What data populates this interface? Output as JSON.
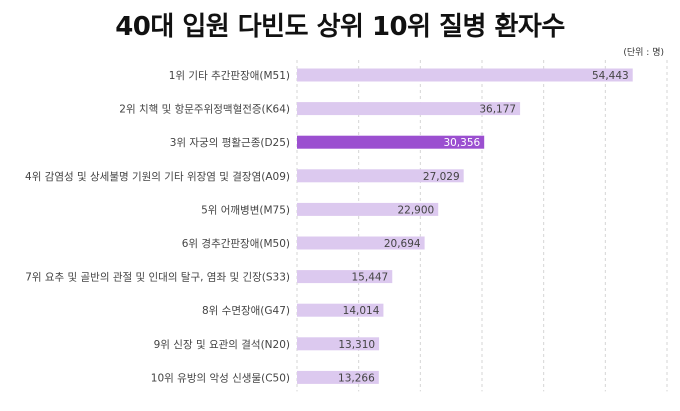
{
  "chart_data": {
    "type": "bar",
    "orientation": "horizontal",
    "title": "40대 입원 다빈도 상위 10위 질병 환자수",
    "unit_label": "(단위 : 명)",
    "categories": [
      "1위 기타 추간판장애(M51)",
      "2위 치핵 및 항문주위정맥혈전증(K64)",
      "3위 자궁의 평활근종(D25)",
      "4위 감염성 및 상세불명 기원의 기타 위장염 및 결장염(A09)",
      "5위 어깨병변(M75)",
      "6위 경추간판장애(M50)",
      "7위 요추 및 골반의 관절 및 인대의 탈구, 염좌 및 긴장(S33)",
      "8위 수면장애(G47)",
      "9위 신장 및 요관의 결석(N20)",
      "10위 유방의 악성 신생물(C50)"
    ],
    "values": [
      54443,
      36177,
      30356,
      27029,
      22900,
      20694,
      15447,
      14014,
      13310,
      13266
    ],
    "value_labels": [
      "54,443",
      "36,177",
      "30,356",
      "27,029",
      "22,900",
      "20,694",
      "15,447",
      "14,014",
      "13,310",
      "13,266"
    ],
    "highlight_index": 2,
    "xlim": [
      0,
      60000
    ],
    "grid": "vertical dashed",
    "colors": {
      "bar": "#dcc9ef",
      "highlight": "#9b4fd0",
      "label_text": "#444444",
      "highlight_text": "#ffffff",
      "grid": "#d6d6d6"
    }
  }
}
